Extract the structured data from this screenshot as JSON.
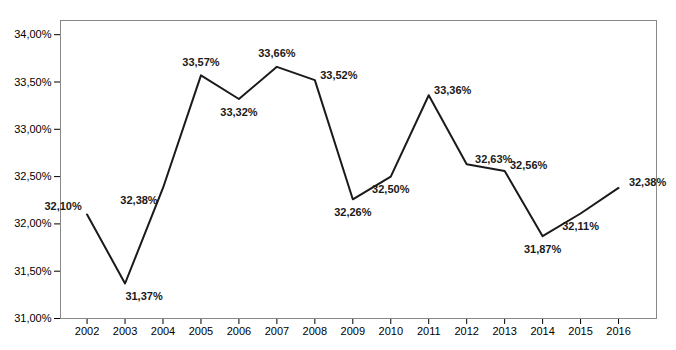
{
  "chart_data": {
    "type": "line",
    "x": [
      2002,
      2003,
      2004,
      2005,
      2006,
      2007,
      2008,
      2009,
      2010,
      2011,
      2012,
      2013,
      2014,
      2015,
      2016
    ],
    "values": [
      32.1,
      31.37,
      32.38,
      33.57,
      33.32,
      33.66,
      33.52,
      32.26,
      32.5,
      33.36,
      32.63,
      32.56,
      31.87,
      32.11,
      32.38
    ],
    "value_labels": [
      "32,10%",
      "31,37%",
      "32,38%",
      "33,57%",
      "33,32%",
      "33,66%",
      "33,52%",
      "32,26%",
      "32,50%",
      "33,36%",
      "32,63%",
      "32,56%",
      "31,87%",
      "32,11%",
      "32,38%"
    ],
    "data_labels": true,
    "color": "#1a1a1a",
    "xlim": [
      2001.3,
      2017.0
    ],
    "xticks": [
      2002,
      2003,
      2004,
      2005,
      2006,
      2007,
      2008,
      2009,
      2010,
      2011,
      2012,
      2013,
      2014,
      2015,
      2016
    ],
    "ylim": [
      31.0,
      34.15
    ],
    "yticks": [
      {
        "value": 31.0,
        "label": "31,00%"
      },
      {
        "value": 31.5,
        "label": "31,50%"
      },
      {
        "value": 32.0,
        "label": "32,00%"
      },
      {
        "value": 32.5,
        "label": "32,50%"
      },
      {
        "value": 33.0,
        "label": "33,00%"
      },
      {
        "value": 33.5,
        "label": "33,50%"
      },
      {
        "value": 34.0,
        "label": "34,00%"
      }
    ],
    "grid": false
  }
}
